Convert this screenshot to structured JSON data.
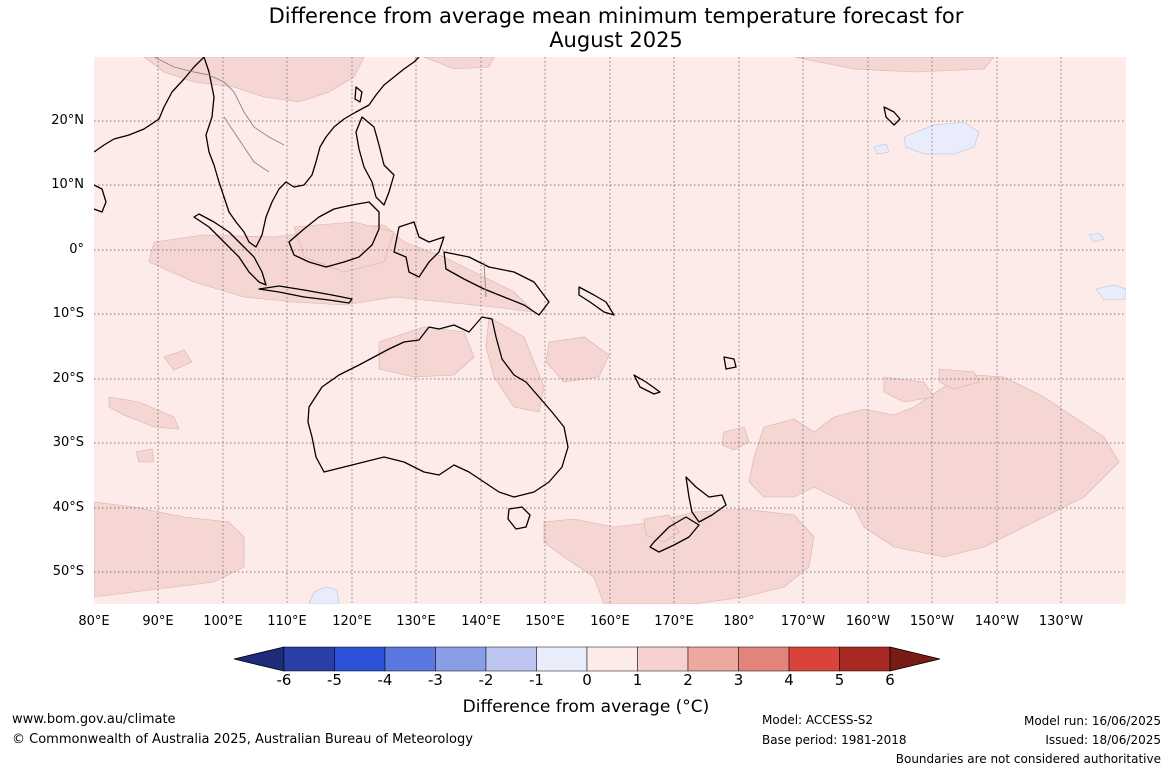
{
  "title_line1": "Difference from average mean minimum temperature forecast for",
  "title_line2": "August 2025",
  "lat_labels": [
    "20°N",
    "10°N",
    "0°",
    "10°S",
    "20°S",
    "30°S",
    "40°S",
    "50°S"
  ],
  "lon_labels": [
    "80°E",
    "90°E",
    "100°E",
    "110°E",
    "120°E",
    "130°E",
    "140°E",
    "150°E",
    "160°E",
    "170°E",
    "180°",
    "170°W",
    "160°W",
    "150°W",
    "140°W",
    "130°W"
  ],
  "colorbar": {
    "ticks": [
      "-6",
      "-5",
      "-4",
      "-3",
      "-2",
      "-1",
      "0",
      "1",
      "2",
      "3",
      "4",
      "5",
      "6"
    ],
    "colors": [
      "#2a3ea8",
      "#2d52d8",
      "#5a78e0",
      "#8a9ee8",
      "#bcc6f0",
      "#e8ecfb",
      "#fcebe8",
      "#f5d2cf",
      "#eca99f",
      "#e4857b",
      "#d8443a",
      "#a82a22"
    ],
    "under_color": "#1d2b7a",
    "over_color": "#7a1c16",
    "label": "Difference from average (°C)"
  },
  "map": {
    "background_color": "#fcebe8",
    "anomaly_shade_color": "#f5d6d3",
    "negative_shade_color": "#e8ecfb"
  },
  "footer": {
    "website": "www.bom.gov.au/climate",
    "copyright": "© Commonwealth of Australia 2025, Australian Bureau of Meteorology",
    "model": "Model: ACCESS-S2",
    "base_period": "Base period: 1981-2018",
    "model_run": "Model run: 16/06/2025",
    "issued": "Issued: 18/06/2025",
    "disclaimer": "Boundaries are not considered authoritative"
  }
}
